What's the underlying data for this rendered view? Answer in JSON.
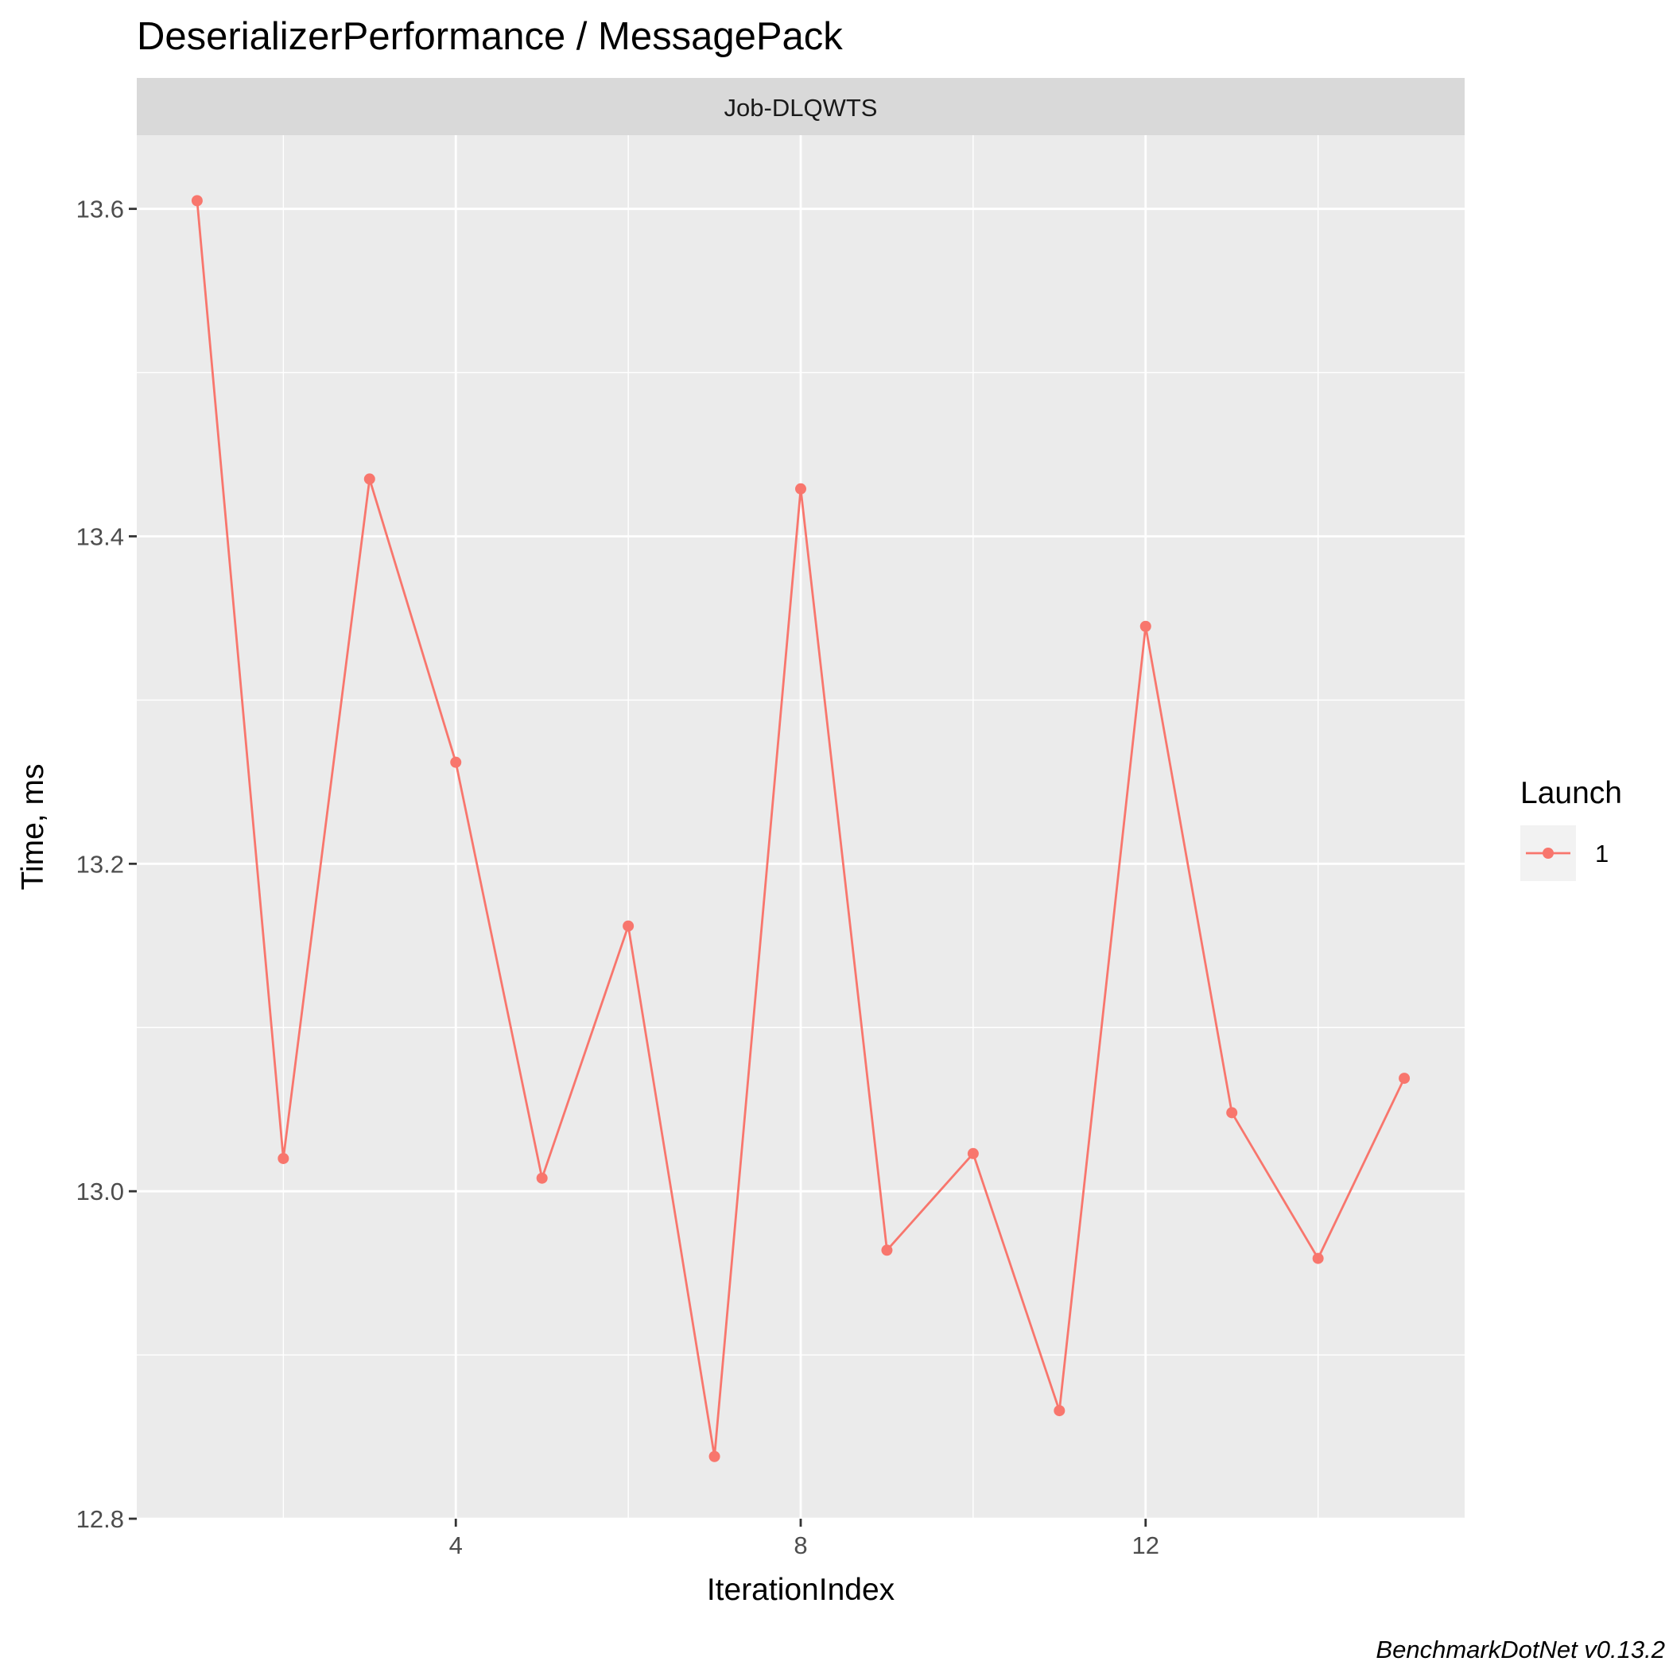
{
  "chart_data": {
    "type": "line",
    "title": "DeserializerPerformance / MessagePack",
    "facet_label": "Job-DLQWTS",
    "xlabel": "IterationIndex",
    "ylabel": "Time, ms",
    "xlim": [
      0.3,
      15.7
    ],
    "ylim": [
      12.8,
      13.645
    ],
    "x_ticks": [
      4,
      8,
      12
    ],
    "y_ticks": [
      12.8,
      13.0,
      13.2,
      13.4,
      13.6
    ],
    "x_tick_labels": [
      "4",
      "8",
      "12"
    ],
    "y_tick_labels": [
      "12.8",
      "13.0",
      "13.2",
      "13.4",
      "13.6"
    ],
    "grid": true,
    "legend": {
      "title": "Launch",
      "position": "right"
    },
    "series": [
      {
        "name": "1",
        "color": "#F8766D",
        "x": [
          1,
          2,
          3,
          4,
          5,
          6,
          7,
          8,
          9,
          10,
          11,
          12,
          13,
          14,
          15
        ],
        "values": [
          13.605,
          13.02,
          13.435,
          13.262,
          13.008,
          13.162,
          12.838,
          13.429,
          12.964,
          13.023,
          12.866,
          13.345,
          13.048,
          12.959,
          13.069
        ]
      }
    ],
    "caption": "BenchmarkDotNet v0.13.2"
  }
}
